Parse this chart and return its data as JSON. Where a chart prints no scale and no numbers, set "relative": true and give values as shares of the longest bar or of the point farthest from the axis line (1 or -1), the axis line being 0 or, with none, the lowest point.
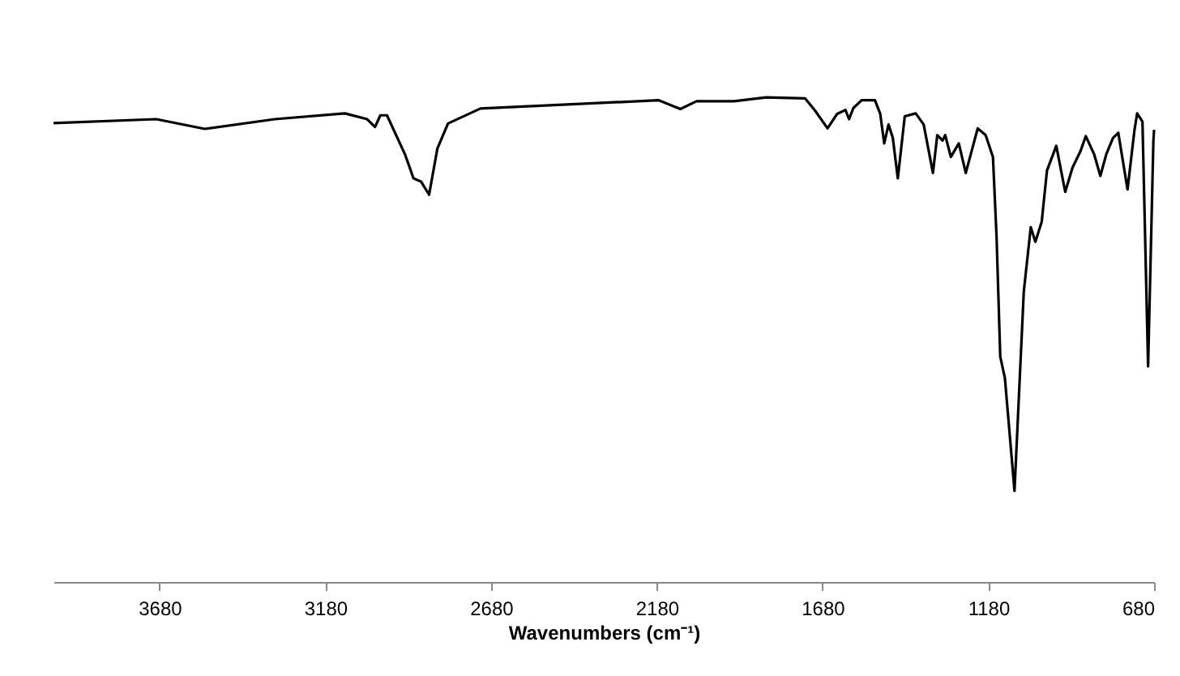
{
  "chart_data": {
    "type": "line",
    "xlabel": "Wavenumbers (cm⁻¹)",
    "relative": true,
    "tick_labels": "x",
    "grid": false,
    "xlim": [
      4000,
      680
    ],
    "xticks": [
      3680,
      3180,
      2680,
      2180,
      1680,
      1180,
      680
    ],
    "series": [
      {
        "color": "#000000",
        "x": [
          4000,
          3690,
          3544,
          3332,
          3121,
          3054,
          3030,
          3014,
          2994,
          2940,
          2914,
          2891,
          2867,
          2842,
          2810,
          2712,
          2174,
          2109,
          2060,
          1947,
          1850,
          1733,
          1703,
          1665,
          1636,
          1611,
          1600,
          1587,
          1562,
          1522,
          1506,
          1494,
          1481,
          1468,
          1453,
          1432,
          1399,
          1375,
          1347,
          1334,
          1318,
          1310,
          1293,
          1269,
          1248,
          1212,
          1188,
          1166,
          1155,
          1144,
          1130,
          1101,
          1073,
          1052,
          1038,
          1019,
          1003,
          975,
          948,
          926,
          902,
          886,
          861,
          842,
          824,
          804,
          788,
          760,
          739,
          731,
          715,
          698,
          682,
          680
        ],
        "values": [
          0.947,
          0.955,
          0.935,
          0.955,
          0.967,
          0.955,
          0.939,
          0.963,
          0.963,
          0.883,
          0.833,
          0.826,
          0.799,
          0.894,
          0.946,
          0.977,
          0.994,
          0.976,
          0.992,
          0.992,
          1.0,
          0.998,
          0.973,
          0.936,
          0.966,
          0.974,
          0.955,
          0.978,
          0.994,
          0.994,
          0.966,
          0.905,
          0.944,
          0.916,
          0.833,
          0.961,
          0.967,
          0.944,
          0.844,
          0.922,
          0.911,
          0.922,
          0.877,
          0.905,
          0.844,
          0.936,
          0.922,
          0.877,
          0.71,
          0.465,
          0.421,
          0.188,
          0.599,
          0.732,
          0.702,
          0.743,
          0.849,
          0.9,
          0.805,
          0.855,
          0.889,
          0.92,
          0.883,
          0.838,
          0.883,
          0.916,
          0.927,
          0.81,
          0.933,
          0.967,
          0.95,
          0.445,
          0.911,
          0.933
        ]
      }
    ]
  }
}
